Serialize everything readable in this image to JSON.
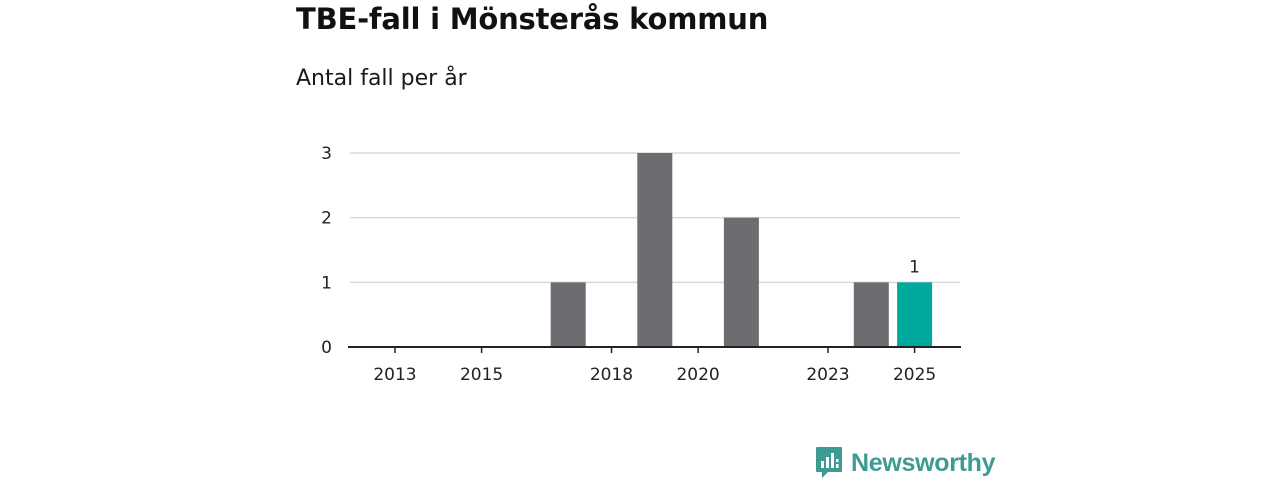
{
  "chart_data": {
    "type": "bar",
    "title": "TBE-fall i Mönsterås kommun",
    "subtitle": "Antal fall per år",
    "categories": [
      "2013",
      "2014",
      "2015",
      "2016",
      "2017",
      "2018",
      "2019",
      "2020",
      "2021",
      "2022",
      "2023",
      "2024",
      "2025"
    ],
    "values": [
      0,
      0,
      0,
      0,
      1,
      0,
      3,
      0,
      2,
      0,
      0,
      1,
      1
    ],
    "x_tick_labels": [
      "2013",
      "2015",
      "2018",
      "2020",
      "2023",
      "2025"
    ],
    "ylim": [
      0,
      3
    ],
    "yticks": [
      0,
      1,
      2,
      3
    ],
    "grid": true,
    "highlight_category": "2025",
    "value_labels": [
      {
        "category": "2025",
        "text": "1"
      }
    ],
    "colors": {
      "bar": "#6d6c71",
      "highlight": "#00a99d",
      "grid": "#d9d9d9",
      "axis": "#222222"
    }
  },
  "brand": {
    "name": "Newsworthy",
    "icon": "chart-speech-bubble-icon",
    "color": "#3e9b94"
  }
}
